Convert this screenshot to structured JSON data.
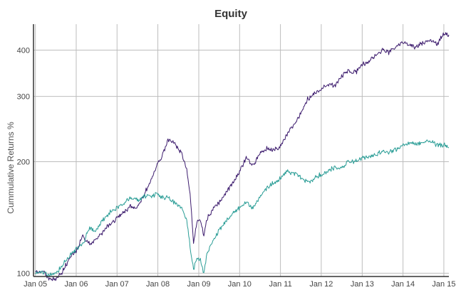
{
  "chart_data": {
    "type": "line",
    "title": "Equity",
    "xlabel": "",
    "ylabel": "Cummulative Returns %",
    "yscale": "log",
    "ylim": [
      98,
      470
    ],
    "xlim": [
      "2004-12-15",
      "2015-02-15"
    ],
    "x_ticks": [
      "Jan 05",
      "Jan 06",
      "Jan 07",
      "Jan 08",
      "Jan 09",
      "Jan 10",
      "Jan 11",
      "Jan 12",
      "Jan 13",
      "Jan 14",
      "Jan 15"
    ],
    "y_ticks": [
      100,
      200,
      300,
      400
    ],
    "grid": true,
    "legend": "none",
    "colors": {
      "series_1": "#3d1c6e",
      "series_2": "#2a9d96"
    },
    "series": [
      {
        "color": "#3d1c6e",
        "x": [
          "2004-12-31",
          "2005-03-01",
          "2005-05-01",
          "2005-07-01",
          "2005-09-01",
          "2005-11-01",
          "2006-01-01",
          "2006-03-01",
          "2006-05-01",
          "2006-07-01",
          "2006-09-01",
          "2006-11-01",
          "2007-01-01",
          "2007-03-01",
          "2007-05-01",
          "2007-07-01",
          "2007-09-01",
          "2007-11-01",
          "2008-01-01",
          "2008-02-01",
          "2008-04-01",
          "2008-06-01",
          "2008-08-01",
          "2008-09-15",
          "2008-10-15",
          "2008-11-15",
          "2008-12-15",
          "2009-01-15",
          "2009-02-15",
          "2009-03-15",
          "2009-05-01",
          "2009-07-01",
          "2009-09-01",
          "2009-11-01",
          "2010-01-01",
          "2010-03-01",
          "2010-05-01",
          "2010-07-01",
          "2010-09-01",
          "2010-11-01",
          "2011-01-01",
          "2011-03-01",
          "2011-05-01",
          "2011-07-01",
          "2011-09-01",
          "2011-11-01",
          "2012-01-01",
          "2012-03-01",
          "2012-05-01",
          "2012-07-01",
          "2012-09-01",
          "2012-11-01",
          "2013-01-01",
          "2013-03-01",
          "2013-05-01",
          "2013-07-01",
          "2013-09-01",
          "2013-11-01",
          "2014-01-01",
          "2014-03-01",
          "2014-05-01",
          "2014-07-01",
          "2014-09-01",
          "2014-11-01",
          "2015-01-01",
          "2015-02-15"
        ],
        "values": [
          100,
          101,
          97,
          96,
          101,
          110,
          115,
          126,
          120,
          124,
          130,
          136,
          141,
          146,
          152,
          150,
          164,
          178,
          200,
          205,
          230,
          224,
          210,
          190,
          165,
          120,
          138,
          140,
          126,
          140,
          148,
          155,
          165,
          175,
          188,
          205,
          195,
          210,
          218,
          215,
          220,
          238,
          250,
          270,
          295,
          305,
          315,
          325,
          320,
          340,
          352,
          348,
          365,
          372,
          388,
          400,
          395,
          410,
          420,
          414,
          408,
          418,
          428,
          414,
          445,
          440
        ]
      },
      {
        "color": "#2a9d96",
        "x": [
          "2004-12-31",
          "2005-03-01",
          "2005-05-01",
          "2005-07-01",
          "2005-09-01",
          "2005-11-01",
          "2006-01-01",
          "2006-03-01",
          "2006-05-01",
          "2006-07-01",
          "2006-09-01",
          "2006-11-01",
          "2007-01-01",
          "2007-03-01",
          "2007-05-01",
          "2007-07-01",
          "2007-09-01",
          "2007-11-01",
          "2008-01-01",
          "2008-02-01",
          "2008-04-01",
          "2008-06-01",
          "2008-08-01",
          "2008-09-15",
          "2008-10-15",
          "2008-11-15",
          "2008-12-15",
          "2009-01-15",
          "2009-02-15",
          "2009-03-15",
          "2009-05-01",
          "2009-07-01",
          "2009-09-01",
          "2009-11-01",
          "2010-01-01",
          "2010-03-01",
          "2010-05-01",
          "2010-07-01",
          "2010-09-01",
          "2010-11-01",
          "2011-01-01",
          "2011-03-01",
          "2011-05-01",
          "2011-07-01",
          "2011-09-01",
          "2011-11-01",
          "2012-01-01",
          "2012-03-01",
          "2012-05-01",
          "2012-07-01",
          "2012-09-01",
          "2012-11-01",
          "2013-01-01",
          "2013-03-01",
          "2013-05-01",
          "2013-07-01",
          "2013-09-01",
          "2013-11-01",
          "2014-01-01",
          "2014-03-01",
          "2014-05-01",
          "2014-07-01",
          "2014-09-01",
          "2014-11-01",
          "2015-01-01",
          "2015-02-15"
        ],
        "values": [
          100,
          101,
          99,
          100,
          105,
          111,
          116,
          120,
          132,
          130,
          140,
          146,
          150,
          154,
          160,
          158,
          162,
          162,
          164,
          160,
          160,
          155,
          150,
          140,
          118,
          102,
          110,
          108,
          100,
          112,
          122,
          130,
          138,
          145,
          150,
          156,
          150,
          160,
          170,
          175,
          180,
          188,
          186,
          182,
          175,
          180,
          185,
          189,
          193,
          192,
          200,
          200,
          204,
          206,
          210,
          213,
          212,
          216,
          222,
          225,
          222,
          226,
          228,
          222,
          222,
          218
        ]
      }
    ]
  }
}
